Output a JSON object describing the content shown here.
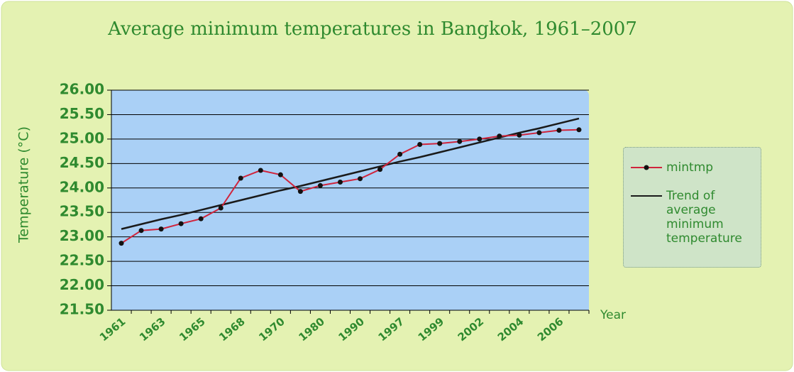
{
  "chart_data": {
    "type": "line",
    "title": "Average minimum temperatures in Bangkok, 1961–2007",
    "y_label": "Temperature (°C)",
    "x_label": "Year",
    "categories": [
      "1961",
      null,
      "1963",
      null,
      "1965",
      null,
      "1968",
      null,
      "1970",
      null,
      "1980",
      null,
      "1990",
      null,
      "1997",
      null,
      "1999",
      null,
      "2002",
      null,
      "2004",
      null,
      "2006",
      null
    ],
    "series": [
      {
        "name": "mintmp",
        "color": "#d0243c",
        "markers": true,
        "values": [
          22.87,
          23.13,
          23.16,
          23.27,
          23.37,
          23.59,
          24.2,
          24.36,
          24.27,
          23.93,
          24.05,
          24.12,
          24.19,
          24.38,
          24.69,
          24.89,
          24.91,
          24.95,
          25.0,
          25.06,
          25.08,
          25.13,
          25.18,
          25.19
        ]
      },
      {
        "name": "Trend of average minimum temperature",
        "color": "#1a1a1a",
        "markers": false,
        "values": [
          23.16,
          23.26,
          23.36,
          23.45,
          23.55,
          23.65,
          23.75,
          23.85,
          23.95,
          24.04,
          24.14,
          24.24,
          24.34,
          24.44,
          24.54,
          24.63,
          24.73,
          24.83,
          24.93,
          25.03,
          25.13,
          25.22,
          25.32,
          25.42
        ]
      }
    ],
    "ylim": [
      21.5,
      26
    ],
    "yticks": [
      {
        "value": 21.5,
        "label": "21.50"
      },
      {
        "value": 22,
        "label": "22.00"
      },
      {
        "value": 22.5,
        "label": "22.50"
      },
      {
        "value": 23,
        "label": "23.00"
      },
      {
        "value": 23.5,
        "label": "23.50"
      },
      {
        "value": 24,
        "label": "24.00"
      },
      {
        "value": 24.5,
        "label": "24.50"
      },
      {
        "value": 25,
        "label": "25.00"
      },
      {
        "value": 25.5,
        "label": "25.50"
      },
      {
        "value": 26,
        "label": "26.00"
      }
    ],
    "grid": true,
    "legend": "right"
  }
}
